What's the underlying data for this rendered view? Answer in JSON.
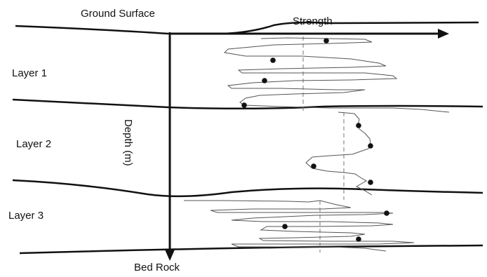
{
  "labels": {
    "ground_surface": "Ground Surface",
    "strength": "Strength",
    "depth": "Depth (m)",
    "bed_rock": "Bed Rock",
    "layers": [
      "Layer 1",
      "Layer 2",
      "Layer 3"
    ]
  },
  "colors": {
    "ink": "#111111",
    "trace": "#555555",
    "dashed": "#777777",
    "background": "#ffffff"
  }
}
